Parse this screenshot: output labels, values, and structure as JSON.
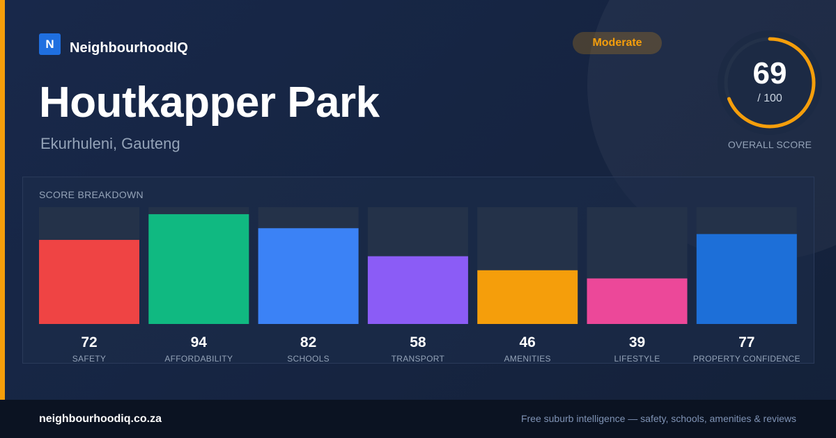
{
  "brand": {
    "logo_letter": "N",
    "name": "NeighbourhoodIQ"
  },
  "suburb": {
    "name": "Houtkapper Park",
    "location": "Ekurhuleni, Gauteng"
  },
  "rating": {
    "label": "Moderate"
  },
  "overall": {
    "score": "69",
    "max": "/ 100",
    "caption": "OVERALL SCORE",
    "value": 69,
    "out_of": 100
  },
  "colors": {
    "accent": "#f59e0b",
    "track": "#243249",
    "ring_track": "#233149"
  },
  "chart_data": {
    "type": "bar",
    "title": "SCORE BREAKDOWN",
    "ylim": [
      0,
      100
    ],
    "grid": false,
    "categories": [
      "SAFETY",
      "AFFORDABILITY",
      "SCHOOLS",
      "TRANSPORT",
      "AMENITIES",
      "LIFESTYLE",
      "PROPERTY CONFIDENCE"
    ],
    "values": [
      72,
      94,
      82,
      58,
      46,
      39,
      77
    ],
    "value_labels": [
      "72",
      "94",
      "82",
      "58",
      "46",
      "39",
      "77"
    ],
    "colors": [
      "#ef4444",
      "#10b981",
      "#3b82f6",
      "#8b5cf6",
      "#f59e0b",
      "#ec4899",
      "#1d6fd8"
    ]
  },
  "footer": {
    "url": "neighbourhoodiq.co.za",
    "tagline": "Free suburb intelligence — safety, schools, amenities & reviews"
  }
}
